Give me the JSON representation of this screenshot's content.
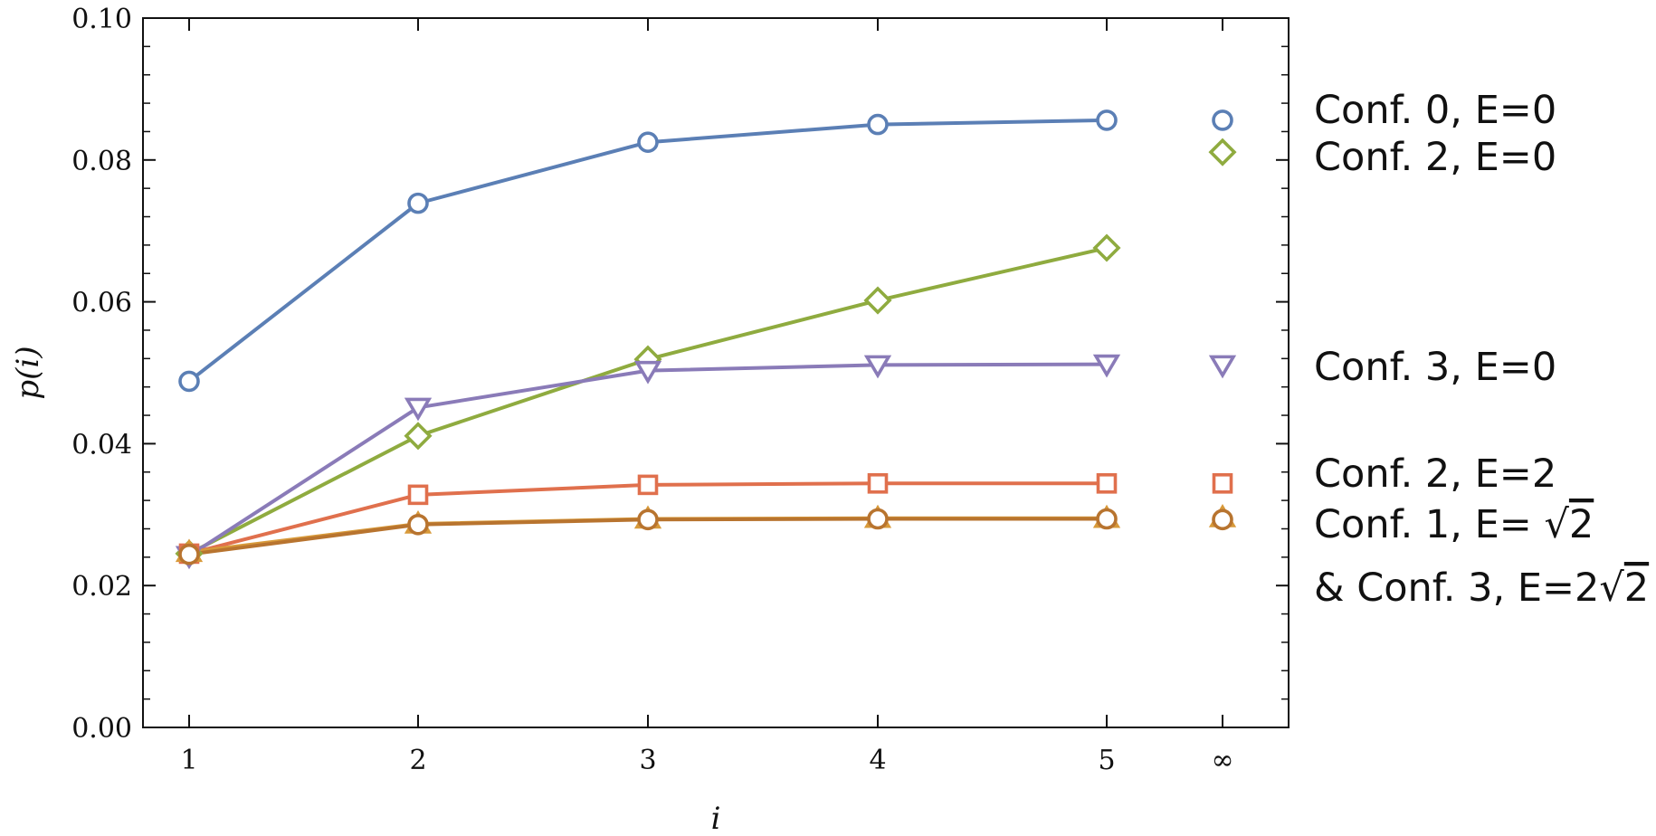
{
  "chart_data": {
    "type": "line",
    "x_tick_labels": [
      "1",
      "2",
      "3",
      "4",
      "5",
      "∞"
    ],
    "x": [
      1,
      2,
      3,
      4,
      5
    ],
    "xlabel": "i",
    "ylabel": "p(i)",
    "ylim": [
      0,
      0.1
    ],
    "y_ticks": [
      0.0,
      0.02,
      0.04,
      0.06,
      0.08,
      0.1
    ],
    "y_tick_labels": [
      "0.00",
      "0.02",
      "0.04",
      "0.06",
      "0.08",
      "0.10"
    ],
    "grid": false,
    "series": [
      {
        "name": "Conf. 0, E=0",
        "color": "#5b7fb5",
        "marker": "circle",
        "values": [
          0.0488,
          0.0739,
          0.0825,
          0.085,
          0.0856
        ],
        "limit": 0.0856
      },
      {
        "name": "Conf. 2, E=0",
        "color": "#8fab3f",
        "marker": "diamond",
        "values": [
          0.0245,
          0.0411,
          0.0519,
          0.0602,
          0.0676
        ],
        "limit": 0.0811
      },
      {
        "name": "Conf. 3, E=0",
        "color": "#8a7bb8",
        "marker": "triangle-down",
        "values": [
          0.0242,
          0.0451,
          0.0503,
          0.0511,
          0.0512
        ],
        "limit": 0.0511
      },
      {
        "name": "Conf. 2, E=2",
        "color": "#e0704d",
        "marker": "square",
        "values": [
          0.0245,
          0.0328,
          0.0342,
          0.0344,
          0.0344
        ],
        "limit": 0.0344
      },
      {
        "name": "Conf. 1, E= √2",
        "color": "#d89a3a",
        "marker": "triangle-up",
        "values": [
          0.0247,
          0.0287,
          0.0294,
          0.0295,
          0.0295
        ],
        "limit": 0.0296
      },
      {
        "name": "& Conf. 3, E=2√2",
        "color": "#b8742f",
        "marker": "circle",
        "values": [
          0.0244,
          0.0286,
          0.0293,
          0.0294,
          0.0294
        ],
        "limit": 0.0293
      }
    ],
    "legend": [
      {
        "prefix": "Conf. 0, E=0",
        "rad": "",
        "suffix": ""
      },
      {
        "prefix": "Conf. 2, E=0",
        "rad": "",
        "suffix": ""
      },
      {
        "prefix": "Conf. 3, E=0",
        "rad": "",
        "suffix": ""
      },
      {
        "prefix": "Conf. 2, E=2",
        "rad": "",
        "suffix": ""
      },
      {
        "prefix": "Conf. 1, E= ",
        "rad": "2",
        "suffix": ""
      },
      {
        "prefix": "& Conf. 3, E=2",
        "rad": "2",
        "suffix": ""
      }
    ],
    "legend_placement": "right, outside plot"
  }
}
